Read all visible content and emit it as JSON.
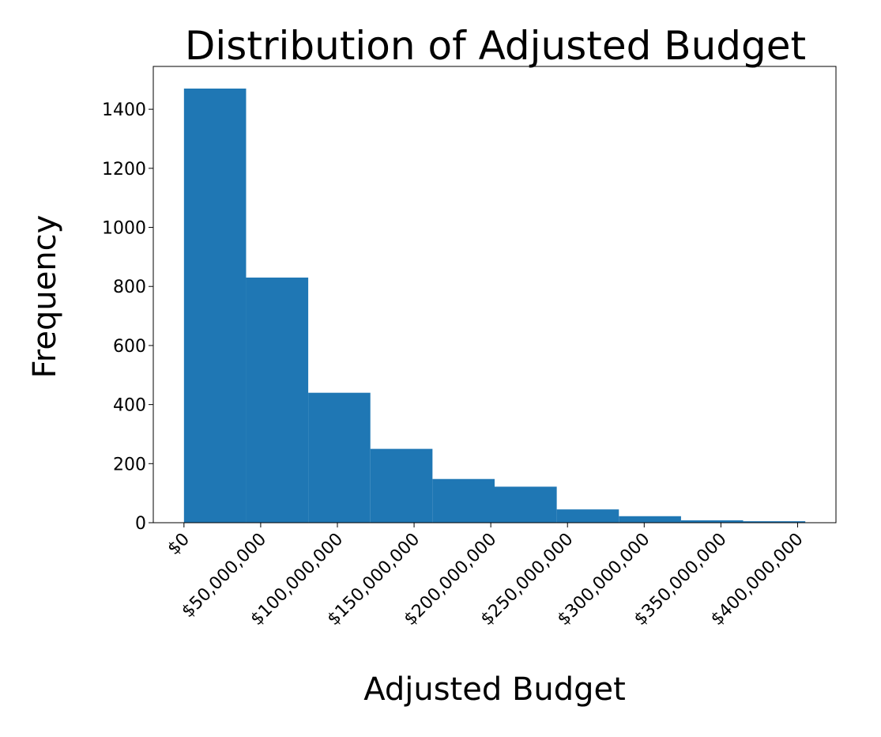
{
  "chart_data": {
    "type": "bar",
    "title": "Distribution of Adjusted Budget",
    "xlabel": "Adjusted Budget",
    "ylabel": "Frequency",
    "bin_edges": [
      0,
      40500000,
      81000000,
      121500000,
      162000000,
      202500000,
      243000000,
      283500000,
      324000000,
      364500000,
      405000000
    ],
    "values": [
      1470,
      830,
      440,
      250,
      148,
      122,
      45,
      22,
      8,
      5
    ],
    "xlim": [
      -20000000,
      425000000
    ],
    "ylim": [
      0,
      1545
    ],
    "x_ticks": [
      0,
      50000000,
      100000000,
      150000000,
      200000000,
      250000000,
      300000000,
      350000000,
      400000000
    ],
    "x_tick_labels": [
      "$0",
      "$50,000,000",
      "$100,000,000",
      "$150,000,000",
      "$200,000,000",
      "$250,000,000",
      "$300,000,000",
      "$350,000,000",
      "$400,000,000"
    ],
    "y_ticks": [
      0,
      200,
      400,
      600,
      800,
      1000,
      1200,
      1400
    ],
    "y_tick_labels": [
      "0",
      "200",
      "400",
      "600",
      "800",
      "1000",
      "1200",
      "1400"
    ],
    "grid": false,
    "bar_color": "#1f77b4"
  }
}
